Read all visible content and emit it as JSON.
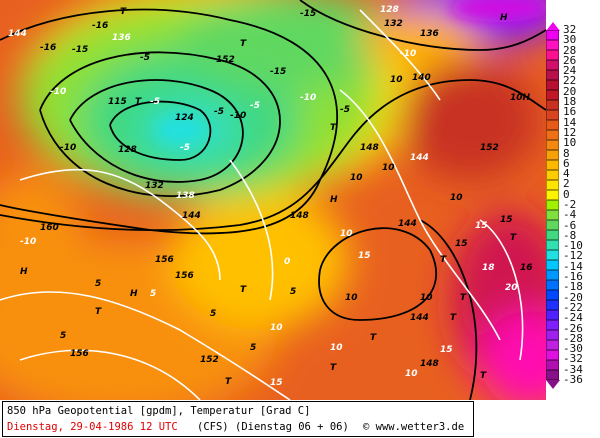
{
  "caption": {
    "line1": "850 hPa Geopotential [gpdm], Temperatur [Grad C]",
    "date": "Dienstag, 29-04-1986   12 UTC",
    "model": "(CFS)",
    "run": "(Dienstag 06 + 06)",
    "credit": "© www.wetter3.de"
  },
  "legend": {
    "labels": [
      "32",
      "30",
      "28",
      "26",
      "24",
      "22",
      "20",
      "18",
      "16",
      "14",
      "12",
      "10",
      "8",
      "6",
      "4",
      "2",
      "0",
      "-2",
      "-4",
      "-6",
      "-8",
      "-10",
      "-12",
      "-14",
      "-16",
      "-18",
      "-20",
      "-22",
      "-24",
      "-26",
      "-28",
      "-30",
      "-32",
      "-34",
      "-36"
    ],
    "colors": [
      "#f000f0",
      "#ff10c0",
      "#ff1090",
      "#d0106a",
      "#b8104a",
      "#b81030",
      "#c01828",
      "#c83020",
      "#d84420",
      "#e85a18",
      "#f07018",
      "#f48810",
      "#f8a008",
      "#ffb800",
      "#ffcc00",
      "#ffe400",
      "#fff400",
      "#a0f000",
      "#80e040",
      "#60d860",
      "#40d880",
      "#30e0b0",
      "#20e0e0",
      "#00c8ff",
      "#0098ff",
      "#0070ff",
      "#0048ff",
      "#2030ff",
      "#5020ff",
      "#8020ff",
      "#a020f0",
      "#c020e0",
      "#e010e0",
      "#b010b0",
      "#881088"
    ]
  },
  "map": {
    "labels": [
      "144",
      "-16",
      "-16",
      "136",
      "T",
      "T",
      "152",
      "-15",
      "-15",
      "128",
      "132",
      "136",
      "-10",
      "140",
      "H",
      "-10",
      "-15",
      "-5",
      "-10",
      "10H",
      "115",
      "-5",
      "124",
      "-5",
      "T",
      "-10",
      "T",
      "144",
      "10",
      "128",
      "-5",
      "148",
      "-10",
      "-5",
      "-5",
      "132",
      "138",
      "144",
      "148",
      "152",
      "H",
      "10",
      "-10",
      "144",
      "10",
      "15",
      "10",
      "15",
      "10",
      "T",
      "H",
      "18",
      "160",
      "156",
      "5",
      "5",
      "H",
      "0",
      "5",
      "T",
      "10",
      "5",
      "10",
      "15",
      "T",
      "16",
      "20",
      "144",
      "5",
      "10",
      "T",
      "152",
      "10",
      "T",
      "T",
      "15",
      "148",
      "10",
      "15",
      "T",
      "156",
      "156",
      "5",
      "T",
      "T",
      "T",
      "15"
    ]
  }
}
